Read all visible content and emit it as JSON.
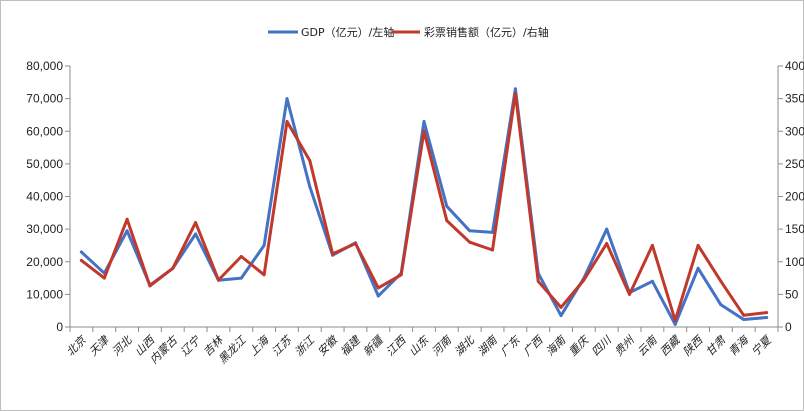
{
  "chart_data": {
    "type": "line",
    "title": "",
    "xlabel": "",
    "ylabel_left": "",
    "ylabel_right": "",
    "legend_position": "top-center",
    "grid": false,
    "colors": {
      "gdp": "#4472C4",
      "lottery": "#C0392B"
    },
    "categories": [
      "北京",
      "天津",
      "河北",
      "山西",
      "内蒙古",
      "辽宁",
      "吉林",
      "黑龙江",
      "上海",
      "江苏",
      "浙江",
      "安徽",
      "福建",
      "新疆",
      "江西",
      "山东",
      "河南",
      "湖北",
      "湖南",
      "广东",
      "广西",
      "海南",
      "重庆",
      "四川",
      "贵州",
      "云南",
      "西藏",
      "陕西",
      "甘肃",
      "青海",
      "宁夏"
    ],
    "y_left": {
      "min": 0,
      "max": 80000,
      "step": 10000,
      "ticks": [
        "0",
        "10,000",
        "20,000",
        "30,000",
        "40,000",
        "50,000",
        "60,000",
        "70,000",
        "80,000"
      ]
    },
    "y_right": {
      "min": 0,
      "max": 400,
      "step": 50,
      "ticks": [
        "0",
        "50",
        "100",
        "150",
        "200",
        "250",
        "300",
        "350",
        "400"
      ]
    },
    "series": [
      {
        "name": "GDP（亿元）/左轴",
        "axis": "left",
        "values": [
          23000,
          16500,
          29500,
          12800,
          18000,
          28500,
          14300,
          15000,
          25000,
          70000,
          43000,
          22000,
          25800,
          9500,
          16500,
          63000,
          37000,
          29500,
          29000,
          73000,
          16500,
          3500,
          15000,
          30000,
          10500,
          14000,
          800,
          18000,
          6800,
          2300,
          2900
        ]
      },
      {
        "name": "彩票销售额（亿元）/右轴",
        "axis": "right",
        "values": [
          102,
          75,
          165,
          63,
          90,
          160,
          72,
          108,
          80,
          315,
          255,
          112,
          128,
          60,
          80,
          300,
          163,
          130,
          118,
          358,
          70,
          30,
          72,
          128,
          50,
          125,
          10,
          125,
          70,
          18,
          22
        ]
      }
    ]
  }
}
